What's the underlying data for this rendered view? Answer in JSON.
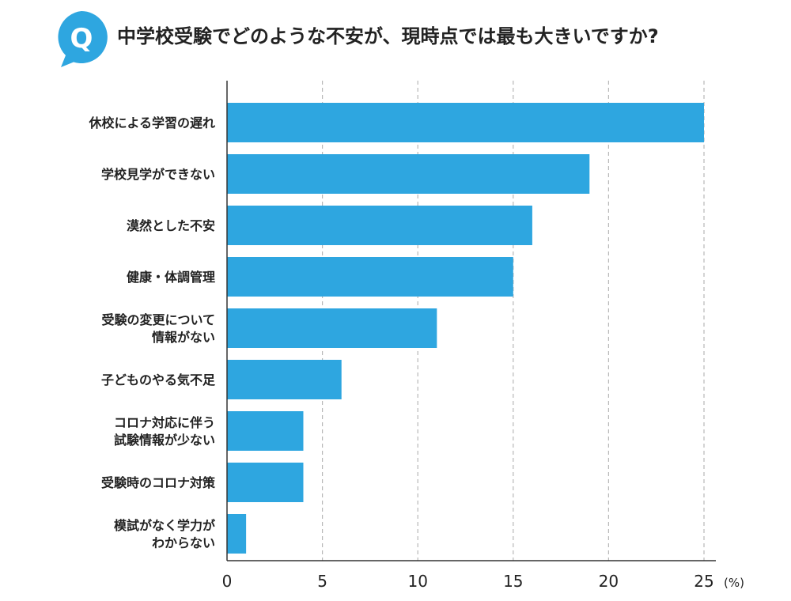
{
  "header": {
    "badge_letter": "Q",
    "title": "中学校受験でどのような不安が、現時点では最も大きいですか?"
  },
  "colors": {
    "bar": "#2ea6e0",
    "badge": "#2ea6e0",
    "axis": "#333333",
    "grid": "#b8b8b8"
  },
  "chart_data": {
    "type": "bar",
    "orientation": "horizontal",
    "categories": [
      "休校による学習の遅れ",
      "学校見学ができない",
      "漠然とした不安",
      "健康・体調管理",
      "受験の変更について\n情報がない",
      "子どものやる気不足",
      "コロナ対応に伴う\n試験情報が少ない",
      "受験時のコロナ対策",
      "模試がなく学力が\nわからない"
    ],
    "values": [
      25,
      19,
      16,
      15,
      11,
      6,
      4,
      4,
      1
    ],
    "xlim": [
      0,
      25
    ],
    "xticks": [
      0,
      5,
      10,
      15,
      20,
      25
    ],
    "unit": "(%)",
    "grid": "vertical dashed"
  }
}
